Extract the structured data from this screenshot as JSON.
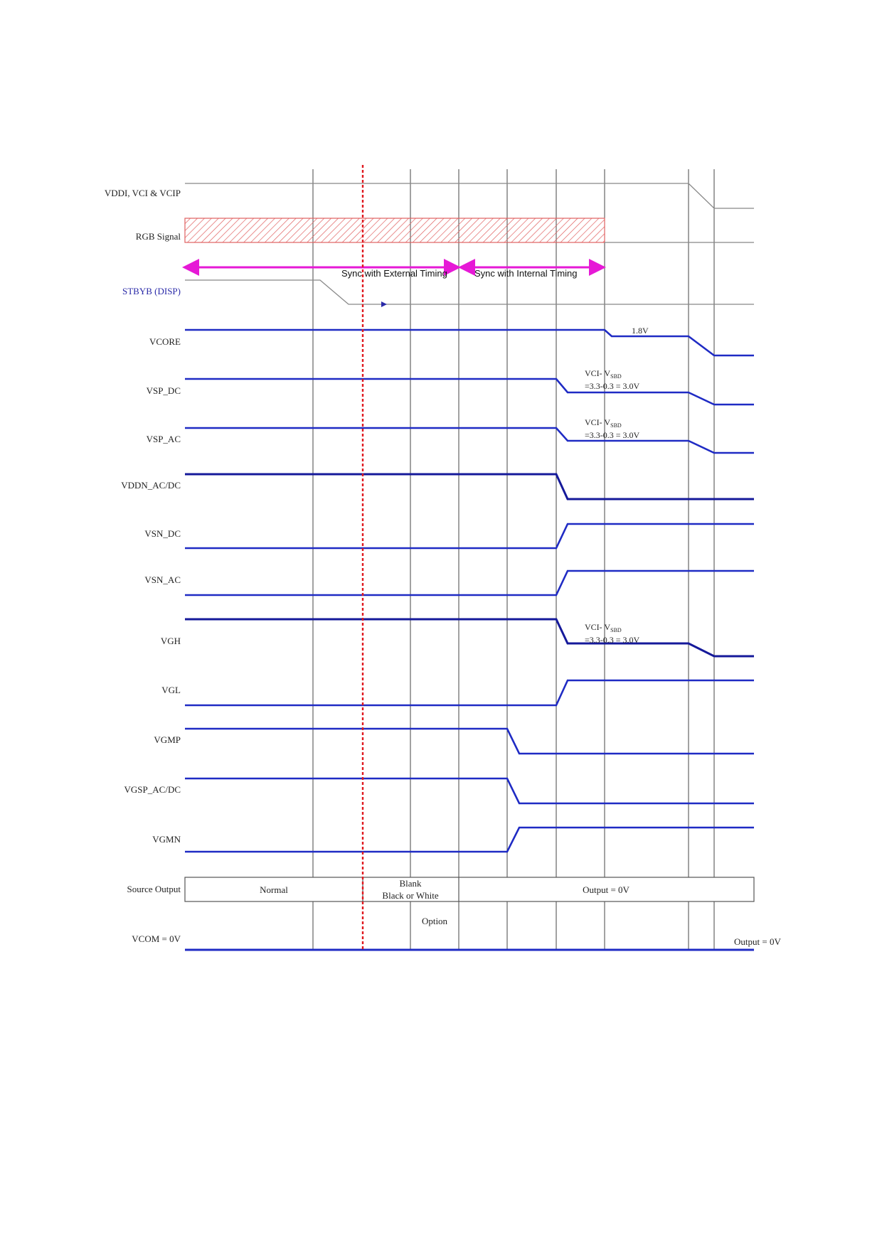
{
  "signals": [
    {
      "id": "vddi",
      "label": "VDDI, VCI & VCIP"
    },
    {
      "id": "rgb",
      "label": "RGB Signal"
    },
    {
      "id": "stbyb",
      "label": "STBYB (DISP)"
    },
    {
      "id": "vcore",
      "label": "VCORE"
    },
    {
      "id": "vsp_dc",
      "label": "VSP_DC"
    },
    {
      "id": "vsp_ac",
      "label": "VSP_AC"
    },
    {
      "id": "vddn",
      "label": "VDDN_AC/DC"
    },
    {
      "id": "vsn_dc",
      "label": "VSN_DC"
    },
    {
      "id": "vsn_ac",
      "label": "VSN_AC"
    },
    {
      "id": "vgh",
      "label": "VGH"
    },
    {
      "id": "vgl",
      "label": "VGL"
    },
    {
      "id": "vgmp",
      "label": "VGMP"
    },
    {
      "id": "vgsp",
      "label": "VGSP_AC/DC"
    },
    {
      "id": "vgmn",
      "label": "VGMN"
    },
    {
      "id": "src",
      "label": "Source Output"
    },
    {
      "id": "vcom",
      "label": "VCOM = 0V"
    }
  ],
  "sync": {
    "external": "Sync with External Timing",
    "internal": "Sync with Internal Timing"
  },
  "annotations": {
    "vcore_level": "1.8V",
    "vci_vssd_prefix": "VCI- V",
    "vci_vssd_sub": "SBD",
    "vci_vssd_calc": "=3.3-0.3 = 3.0V"
  },
  "source_output": {
    "normal": "Normal",
    "blank_line1": "Blank",
    "blank_line2": "Black or White",
    "output_0v": "Output = 0V",
    "option": "Option"
  },
  "vcom_output": "Output = 0V",
  "colors": {
    "signal": "#1f2bc4",
    "signal_dark": "#15199a",
    "thin": "#888888",
    "grid": "#444444",
    "marker": "#e0181e",
    "hatch": "#e06060",
    "sync_arrow": "#e619d6"
  }
}
